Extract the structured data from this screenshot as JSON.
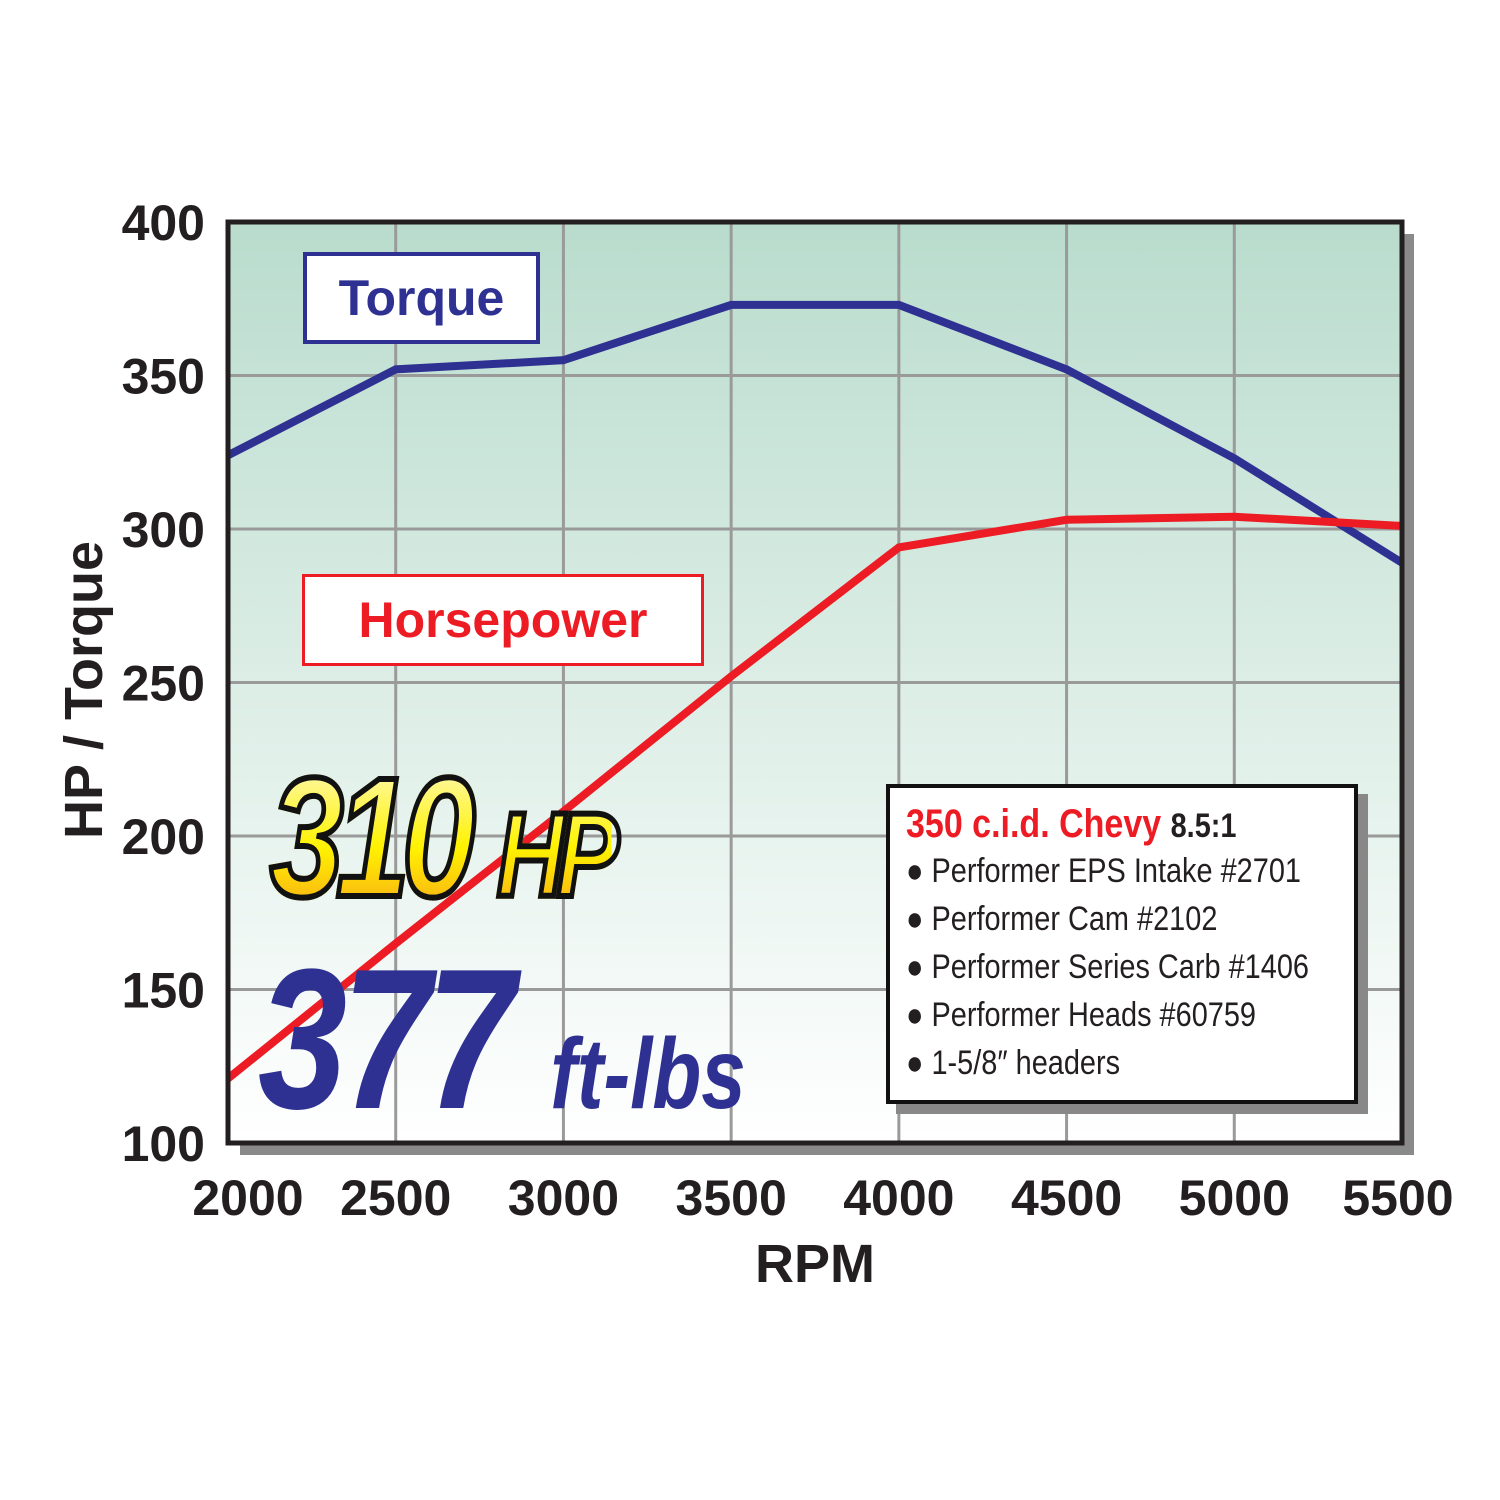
{
  "chart_data": {
    "type": "line",
    "xlabel": "RPM",
    "ylabel": "HP / Torque",
    "x": [
      2000,
      2500,
      3000,
      3500,
      4000,
      4500,
      5000,
      5500
    ],
    "xlim": [
      2000,
      5500
    ],
    "ylim": [
      100,
      400
    ],
    "xticks": [
      "2000",
      "2500",
      "3000",
      "3500",
      "4000",
      "4500",
      "5000",
      "5500"
    ],
    "yticks": [
      "100",
      "150",
      "200",
      "250",
      "300",
      "350",
      "400"
    ],
    "grid": true,
    "series": [
      {
        "name": "Torque",
        "color": "#2e3192",
        "values": [
          324,
          352,
          355,
          373,
          373,
          352,
          323,
          289
        ]
      },
      {
        "name": "Horsepower",
        "color": "#ed1c24",
        "values": [
          121,
          165,
          208,
          252,
          294,
          303,
          304,
          301
        ]
      }
    ],
    "background_colors": [
      "#b9dccd",
      "#ffffff"
    ],
    "annotations": {
      "hp_value": "310",
      "hp_unit": "HP",
      "torque_value": "377",
      "torque_unit": "ft-lbs"
    },
    "spec_box": {
      "title": "350 c.i.d. Chevy",
      "ratio": "8.5:1",
      "items": [
        "Performer EPS Intake #2701",
        "Performer Cam #2102",
        "Performer Series Carb #1406",
        "Performer Heads #60759",
        "1-5/8″ headers"
      ]
    }
  }
}
